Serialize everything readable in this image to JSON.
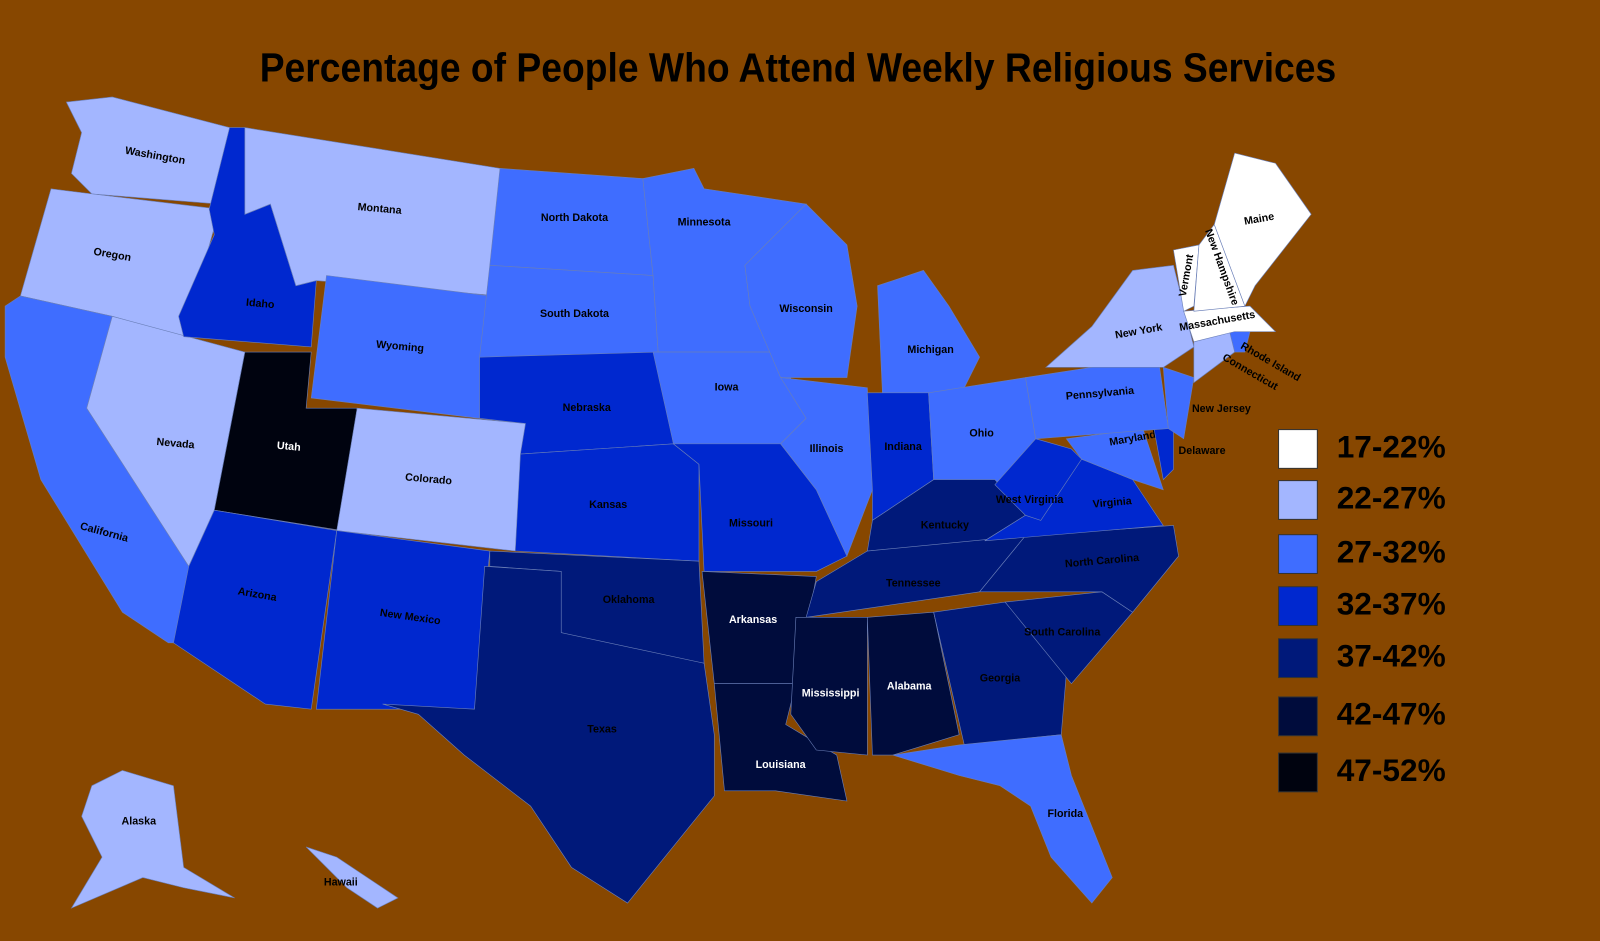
{
  "title": "Percentage of People Who Attend Weekly Religious Services",
  "legend": [
    {
      "label": "17-22%",
      "color": "#ffffff"
    },
    {
      "label": "22-27%",
      "color": "#a3b6ff"
    },
    {
      "label": "27-32%",
      "color": "#3f6dff"
    },
    {
      "label": "32-37%",
      "color": "#0028cf"
    },
    {
      "label": "37-42%",
      "color": "#00197a"
    },
    {
      "label": "42-47%",
      "color": "#000c3c"
    },
    {
      "label": "47-52%",
      "color": "#00030f"
    }
  ],
  "states": [
    {
      "name": "Washington",
      "bin": 1
    },
    {
      "name": "Oregon",
      "bin": 1
    },
    {
      "name": "California",
      "bin": 2
    },
    {
      "name": "Nevada",
      "bin": 1
    },
    {
      "name": "Idaho",
      "bin": 3
    },
    {
      "name": "Montana",
      "bin": 1
    },
    {
      "name": "Wyoming",
      "bin": 2
    },
    {
      "name": "Utah",
      "bin": 6
    },
    {
      "name": "Colorado",
      "bin": 1
    },
    {
      "name": "Arizona",
      "bin": 3
    },
    {
      "name": "New Mexico",
      "bin": 3
    },
    {
      "name": "North Dakota",
      "bin": 2
    },
    {
      "name": "South Dakota",
      "bin": 2
    },
    {
      "name": "Nebraska",
      "bin": 3
    },
    {
      "name": "Kansas",
      "bin": 3
    },
    {
      "name": "Oklahoma",
      "bin": 4
    },
    {
      "name": "Texas",
      "bin": 4
    },
    {
      "name": "Minnesota",
      "bin": 2
    },
    {
      "name": "Iowa",
      "bin": 2
    },
    {
      "name": "Missouri",
      "bin": 3
    },
    {
      "name": "Arkansas",
      "bin": 5
    },
    {
      "name": "Louisiana",
      "bin": 5
    },
    {
      "name": "Wisconsin",
      "bin": 2
    },
    {
      "name": "Illinois",
      "bin": 2
    },
    {
      "name": "Michigan",
      "bin": 2
    },
    {
      "name": "Indiana",
      "bin": 3
    },
    {
      "name": "Ohio",
      "bin": 2
    },
    {
      "name": "Kentucky",
      "bin": 4
    },
    {
      "name": "Tennessee",
      "bin": 4
    },
    {
      "name": "Mississippi",
      "bin": 5
    },
    {
      "name": "Alabama",
      "bin": 5
    },
    {
      "name": "Georgia",
      "bin": 4
    },
    {
      "name": "Florida",
      "bin": 2
    },
    {
      "name": "South Carolina",
      "bin": 4
    },
    {
      "name": "North Carolina",
      "bin": 4
    },
    {
      "name": "Virginia",
      "bin": 3
    },
    {
      "name": "West Virginia",
      "bin": 3
    },
    {
      "name": "Maryland",
      "bin": 2
    },
    {
      "name": "Delaware",
      "bin": 3
    },
    {
      "name": "Pennsylvania",
      "bin": 2
    },
    {
      "name": "New Jersey",
      "bin": 2
    },
    {
      "name": "New York",
      "bin": 1
    },
    {
      "name": "Connecticut",
      "bin": 1
    },
    {
      "name": "Rhode Island",
      "bin": 2
    },
    {
      "name": "Massachusetts",
      "bin": 0
    },
    {
      "name": "Vermont",
      "bin": 0
    },
    {
      "name": "New Hampshire",
      "bin": 0
    },
    {
      "name": "Maine",
      "bin": 0
    },
    {
      "name": "Alaska",
      "bin": 1
    },
    {
      "name": "Hawaii",
      "bin": 1
    }
  ]
}
